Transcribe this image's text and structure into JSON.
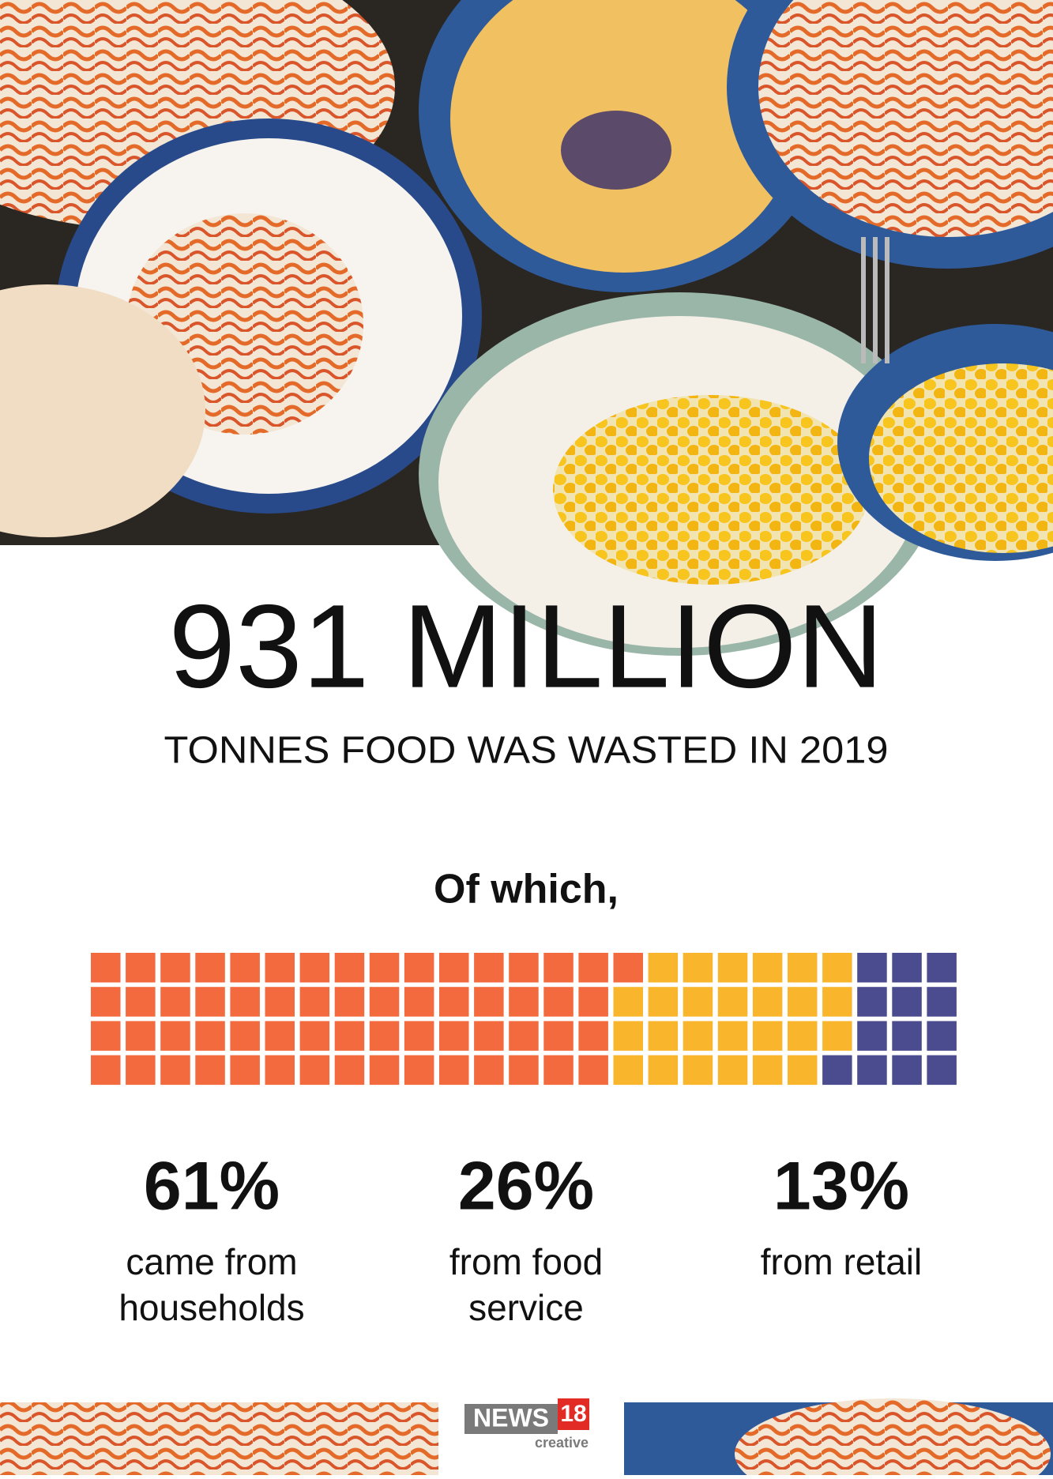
{
  "chart_data": {
    "type": "waffle",
    "title": "931 MILLION",
    "subtitle": "TONNES FOOD WAS WASTED IN 2019",
    "lead": "Of which,",
    "series": [
      {
        "name": "came from households",
        "color": "#f26a3d",
        "values": [
          61
        ],
        "value_labels": [
          "61%"
        ]
      },
      {
        "name": "from food service",
        "color": "#f9b62d",
        "values": [
          26
        ],
        "value_labels": [
          "26%"
        ]
      },
      {
        "name": "from retail",
        "color": "#4b4b8f",
        "values": [
          13
        ],
        "value_labels": [
          "13%"
        ]
      }
    ]
  },
  "footer": {
    "logo": "NEWS",
    "logo_number": "18",
    "tagline": "creative"
  }
}
